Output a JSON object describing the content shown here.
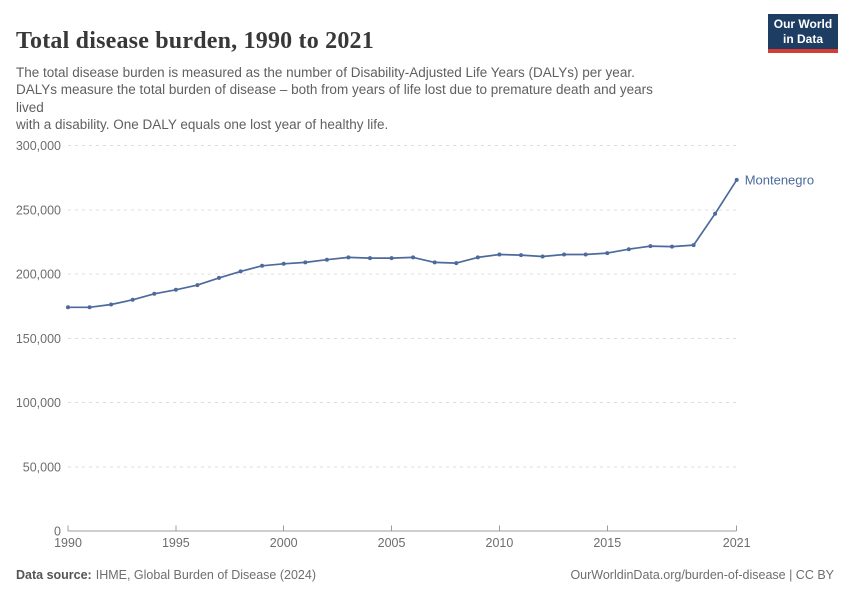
{
  "header": {
    "title": "Total disease burden, 1990 to 2021",
    "subtitle": "The total disease burden is measured as the number of Disability-Adjusted Life Years (DALYs) per year.\nDALYs measure the total burden of disease – both from years of life lost due to premature death and years\nlived\nwith a disability. One DALY equals one lost year of healthy life.",
    "logo": {
      "line1": "Our World",
      "line2": "in Data",
      "bg_color": "#1d3d63",
      "accent_color": "#d73c34"
    }
  },
  "chart_data": {
    "type": "line",
    "title": "Total disease burden, 1990 to 2021",
    "xlabel": "",
    "ylabel": "",
    "xlim": [
      1990,
      2021
    ],
    "ylim": [
      0,
      300000
    ],
    "grid": "horizontal-dashed",
    "legend_position": "end-of-line-label",
    "xticks": [
      1990,
      1995,
      2000,
      2005,
      2010,
      2015,
      2021
    ],
    "yticks": [
      0,
      50000,
      100000,
      150000,
      200000,
      250000,
      300000
    ],
    "ytick_labels": [
      "0",
      "50,000",
      "100,000",
      "150,000",
      "200,000",
      "250,000",
      "300,000"
    ],
    "x": [
      1990,
      1991,
      1992,
      1993,
      1994,
      1995,
      1996,
      1997,
      1998,
      1999,
      2000,
      2001,
      2002,
      2003,
      2004,
      2005,
      2006,
      2007,
      2008,
      2009,
      2010,
      2011,
      2012,
      2013,
      2014,
      2015,
      2016,
      2017,
      2018,
      2019,
      2020,
      2021
    ],
    "series": [
      {
        "name": "Montenegro",
        "color": "#4c6a9c",
        "values": [
          174100,
          174100,
          176300,
          179900,
          184600,
          187700,
          191400,
          197000,
          202000,
          206400,
          207900,
          209000,
          211100,
          212900,
          212400,
          212400,
          212900,
          209000,
          208500,
          212900,
          215200,
          214700,
          213600,
          215200,
          215200,
          216300,
          219300,
          221700,
          221300,
          222500,
          246900,
          273200
        ]
      }
    ]
  },
  "footer": {
    "source_label": "Data source:",
    "source_value": "IHME, Global Burden of Disease (2024)",
    "credit": "OurWorldinData.org/burden-of-disease | CC BY"
  }
}
